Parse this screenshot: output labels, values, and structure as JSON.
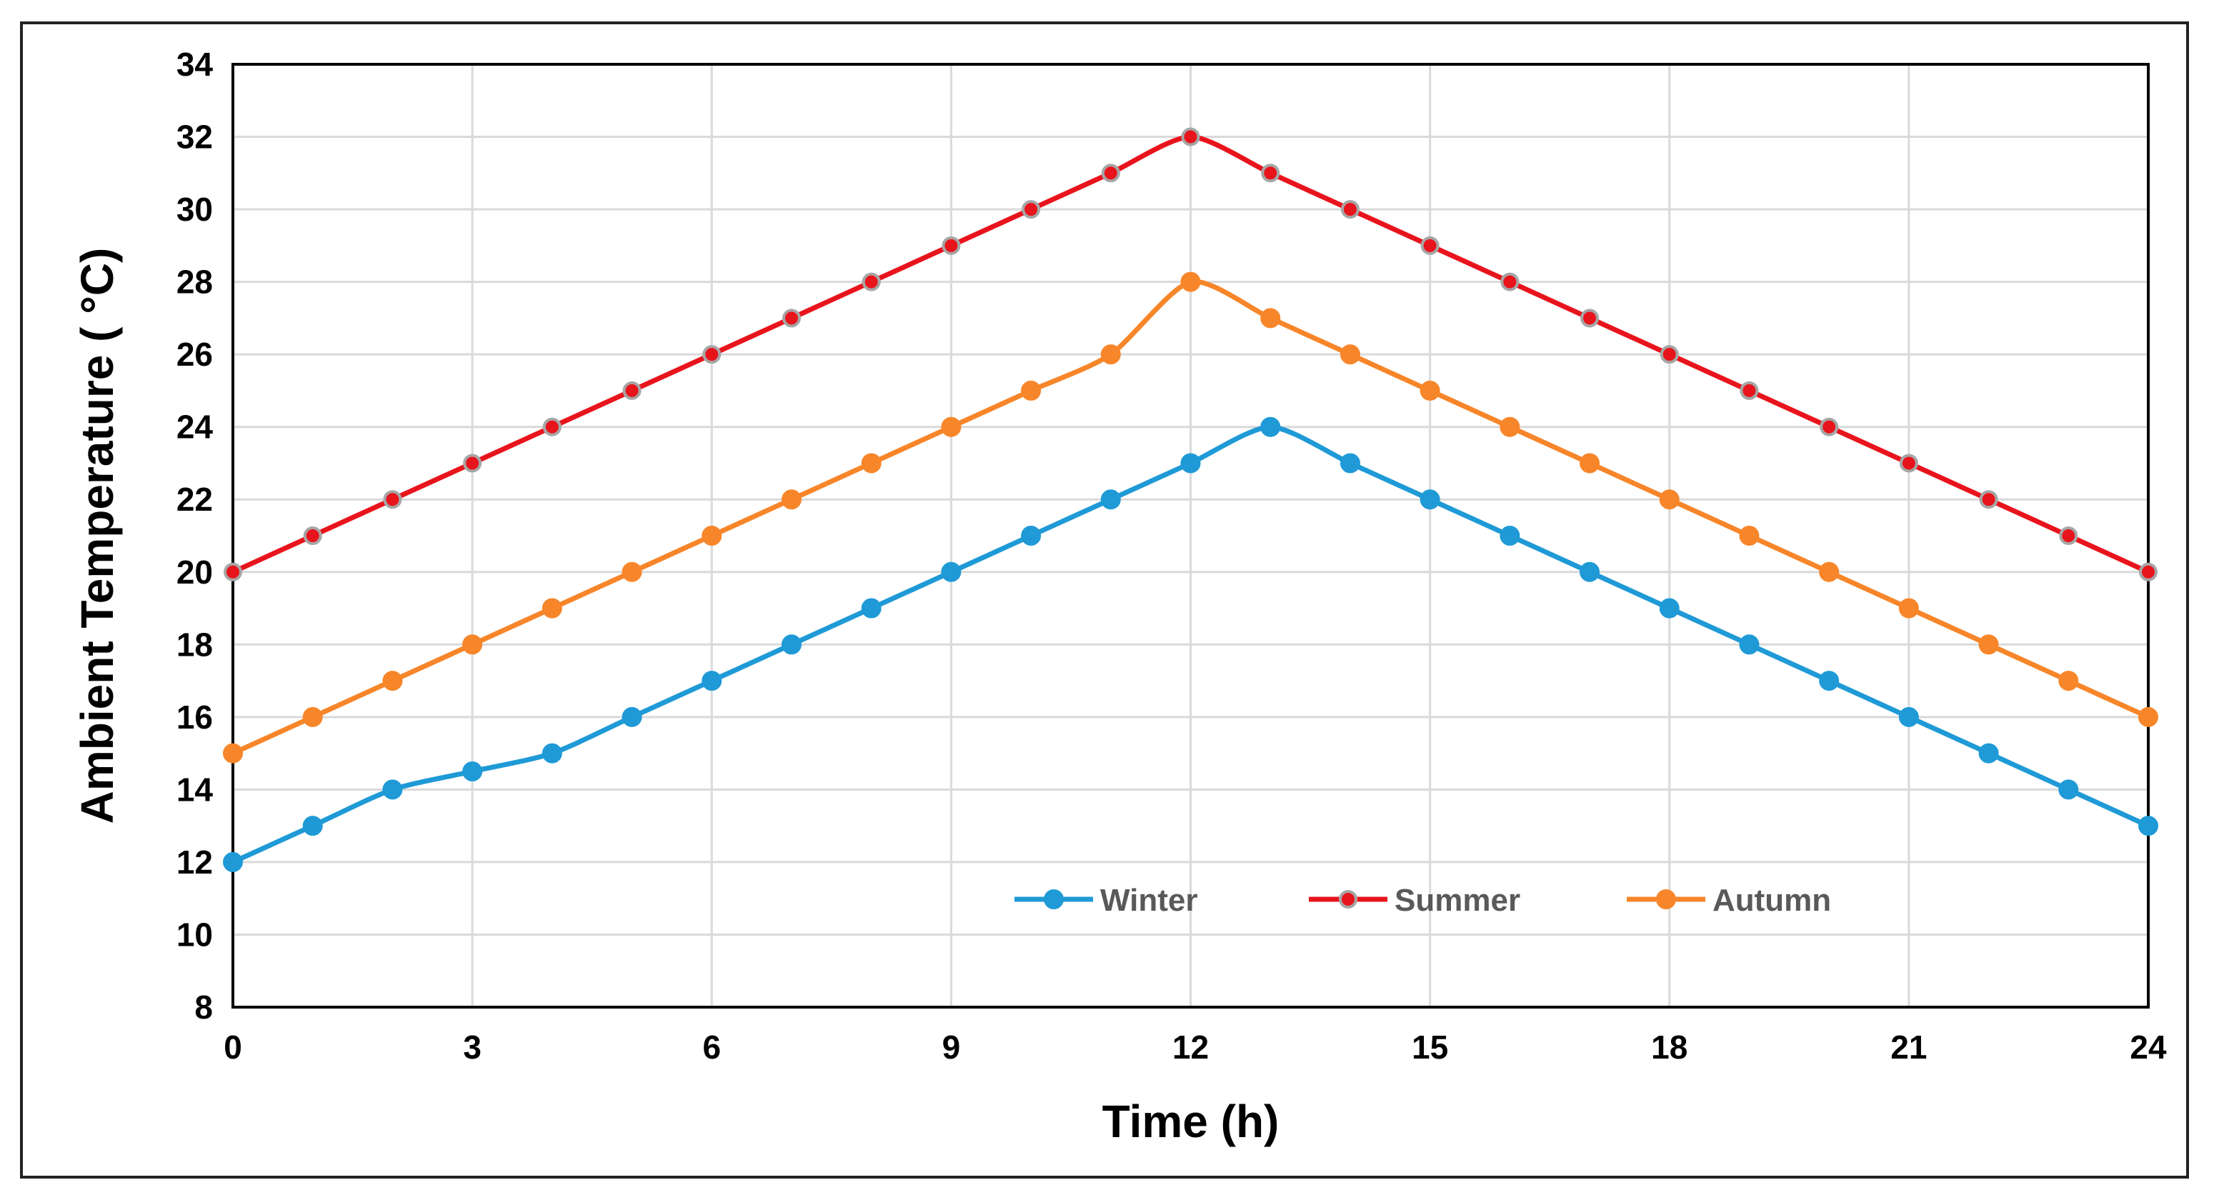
{
  "chart_data": {
    "type": "line",
    "title": "",
    "xlabel": "Time (h)",
    "ylabel": "Ambient  Temperature ( °C)",
    "xlim": [
      0,
      24
    ],
    "ylim": [
      8,
      34
    ],
    "xticks": [
      0,
      3,
      6,
      9,
      12,
      15,
      18,
      21,
      24
    ],
    "yticks": [
      8,
      10,
      12,
      14,
      16,
      18,
      20,
      22,
      24,
      26,
      28,
      30,
      32,
      34
    ],
    "grid": true,
    "legend_position": "bottom-center",
    "x": [
      0,
      1,
      2,
      3,
      4,
      5,
      6,
      7,
      8,
      9,
      10,
      11,
      12,
      13,
      14,
      15,
      16,
      17,
      18,
      19,
      20,
      21,
      22,
      23,
      24
    ],
    "series": [
      {
        "name": "Winter",
        "color": "#1f9ad6",
        "values": [
          12,
          13,
          14,
          14.5,
          15,
          16,
          17,
          18,
          19,
          20,
          21,
          22,
          23,
          24,
          23,
          22,
          21,
          20,
          19,
          18,
          17,
          16,
          15,
          14,
          13
        ]
      },
      {
        "name": "Summer",
        "color": "#e8141c",
        "values": [
          20,
          21,
          22,
          23,
          24,
          25,
          26,
          27,
          28,
          29,
          30,
          31,
          32,
          31,
          30,
          29,
          28,
          27,
          26,
          25,
          24,
          23,
          22,
          21,
          20
        ]
      },
      {
        "name": "Autumn",
        "color": "#f7862a",
        "values": [
          15,
          16,
          17,
          18,
          19,
          20,
          21,
          22,
          23,
          24,
          25,
          26,
          28,
          27,
          26,
          25,
          24,
          23,
          22,
          21,
          20,
          19,
          18,
          17,
          16
        ]
      }
    ]
  }
}
